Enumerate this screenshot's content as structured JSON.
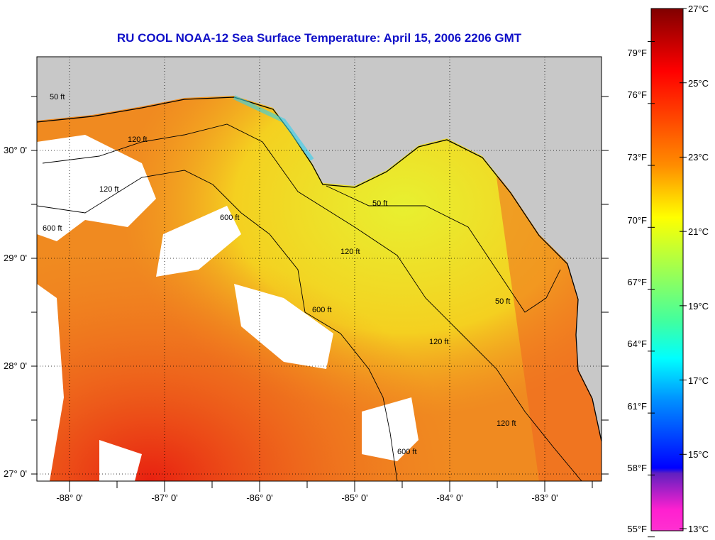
{
  "title": "RU COOL  NOAA-12  Sea Surface Temperature:  April 15, 2006 2206 GMT",
  "map": {
    "lon_labels": [
      "-88° 0'",
      "-87° 0'",
      "-86° 0'",
      "-85° 0'",
      "-84° 0'",
      "-83° 0'"
    ],
    "lat_labels": [
      "30° 0'",
      "29° 0'",
      "28° 0'",
      "27° 0'"
    ],
    "contour_labels": [
      "50 ft",
      "120 ft",
      "600 ft",
      "600 ft",
      "50 ft",
      "120 ft",
      "600 ft",
      "120 ft",
      "50 ft",
      "120 ft",
      "120 ft",
      "600 ft"
    ]
  },
  "colorbar": {
    "celsius_labels": [
      "27°C",
      "25°C",
      "23°C",
      "21°C",
      "19°C",
      "17°C",
      "15°C",
      "13°C"
    ],
    "fahrenheit_labels": [
      "79°F",
      "76°F",
      "73°F",
      "70°F",
      "67°F",
      "64°F",
      "61°F",
      "58°F",
      "55°F"
    ],
    "range_c": [
      13,
      27
    ],
    "colors": {
      "max": "#800000",
      "red": "#ff0000",
      "orange": "#ff8c00",
      "yellow": "#ffff00",
      "green": "#80ff60",
      "cyan": "#00ffff",
      "blue": "#0000ff",
      "min": "#ff30d0"
    }
  }
}
